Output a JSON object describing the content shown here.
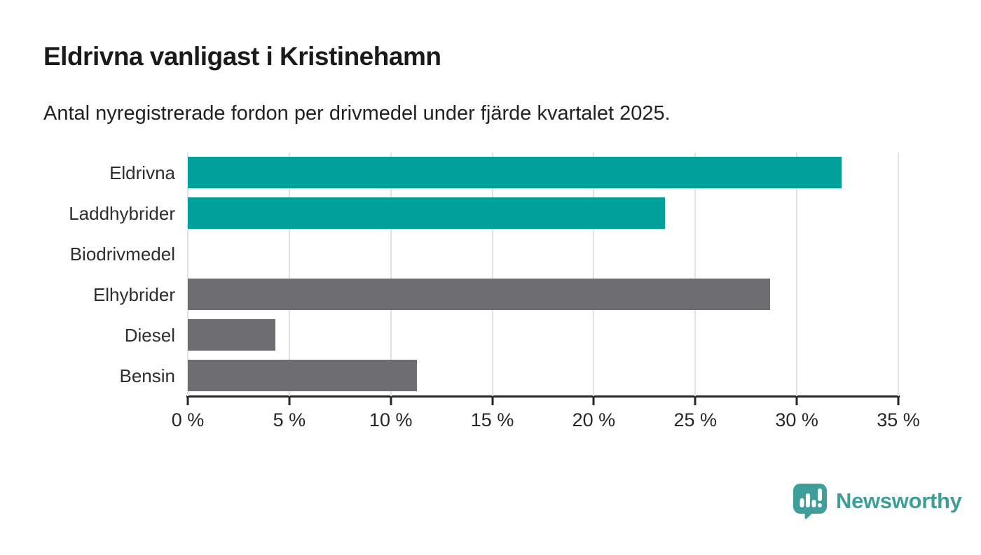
{
  "header": {
    "title": "Eldrivna vanligast i Kristinehamn",
    "subtitle": "Antal nyregistrerade fordon per drivmedel under fjärde kvartalet 2025."
  },
  "chart_data": {
    "type": "bar",
    "orientation": "horizontal",
    "title": "Eldrivna vanligast i Kristinehamn",
    "subtitle": "Antal nyregistrerade fordon per drivmedel under fjärde kvartalet 2025.",
    "categories": [
      "Eldrivna",
      "Laddhybrider",
      "Biodrivmedel",
      "Elhybrider",
      "Diesel",
      "Bensin"
    ],
    "values": [
      32.2,
      23.5,
      0,
      28.7,
      4.3,
      11.3
    ],
    "unit": "%",
    "xlim": [
      0,
      35
    ],
    "x_ticks": [
      0,
      5,
      10,
      15,
      20,
      25,
      30,
      35
    ],
    "x_tick_labels": [
      "0 %",
      "5 %",
      "10 %",
      "15 %",
      "20 %",
      "25 %",
      "30 %",
      "35 %"
    ],
    "grid": true,
    "legend": "none",
    "bar_colors": [
      "#00A19A",
      "#00A19A",
      "#6D6D72",
      "#6D6D72",
      "#6D6D72",
      "#6D6D72"
    ],
    "colors": {
      "accent_teal": "#00A19A",
      "neutral_gray": "#6D6D72",
      "gridline": "#E2E2E2",
      "axis": "#262626",
      "text": "#2E2E2E"
    }
  },
  "footer": {
    "brand": "Newsworthy",
    "brand_color": "#3E9E99",
    "logo_icon": "speech-bubble-bar-chart-icon"
  }
}
